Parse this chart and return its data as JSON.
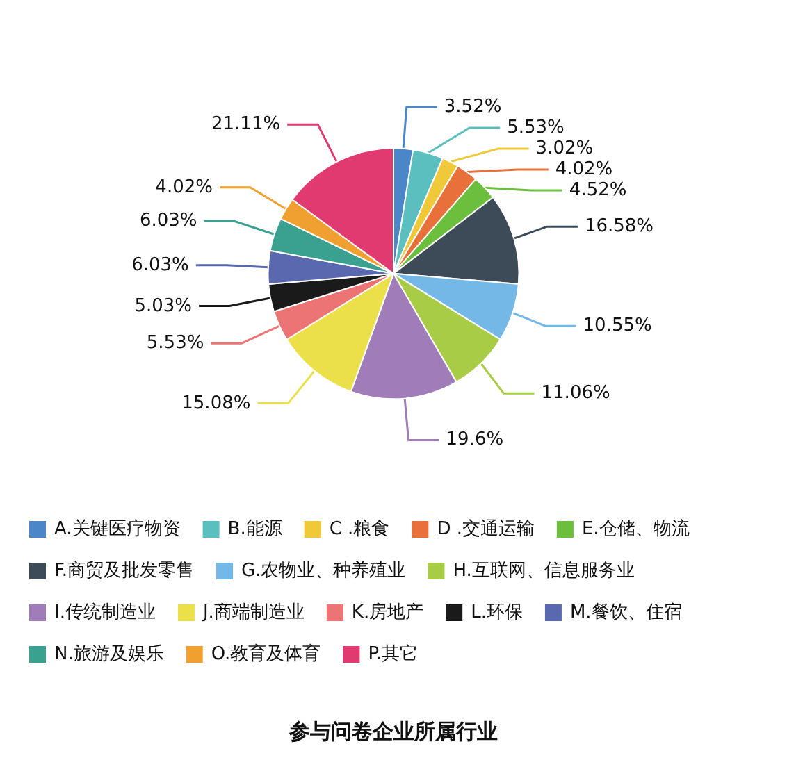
{
  "chart_data": {
    "type": "pie",
    "title": "参与问卷企业所属行业",
    "categories": [
      "A.关键医疗物资",
      "B.能源",
      "C .粮食",
      "D .交通运输",
      "E.仓储、物流",
      "F.商贸及批发零售",
      "G.农物业、种养殖业",
      "H.互联网、信息服务业",
      "I.传统制造业",
      "J.商端制造业",
      "K.房地产",
      "L.环保",
      "M.餐饮、住宿",
      "N.旅游及娱乐",
      "O.教育及体育",
      "P.其它"
    ],
    "values": [
      3.52,
      5.53,
      3.02,
      4.02,
      4.52,
      16.58,
      10.55,
      11.06,
      19.6,
      15.08,
      5.53,
      5.03,
      6.03,
      6.03,
      4.02,
      21.11
    ],
    "colors": [
      "#4a86c8",
      "#5bbfc0",
      "#f0c93a",
      "#e8703a",
      "#6cbf3c",
      "#3d4a58",
      "#74b8e8",
      "#a8cc46",
      "#a07cb8",
      "#ece04a",
      "#ec7474",
      "#1a1a1a",
      "#5a68b0",
      "#3aa090",
      "#f0a030",
      "#e03a70"
    ],
    "value_labels": [
      "3.52%",
      "5.53%",
      "3.02%",
      "4.02%",
      "4.52%",
      "16.58%",
      "10.55%",
      "11.06%",
      "19.6%",
      "15.08%",
      "5.53%",
      "5.03%",
      "6.03%",
      "6.03%",
      "4.02%",
      "21.11%"
    ],
    "legend": "bottom"
  }
}
